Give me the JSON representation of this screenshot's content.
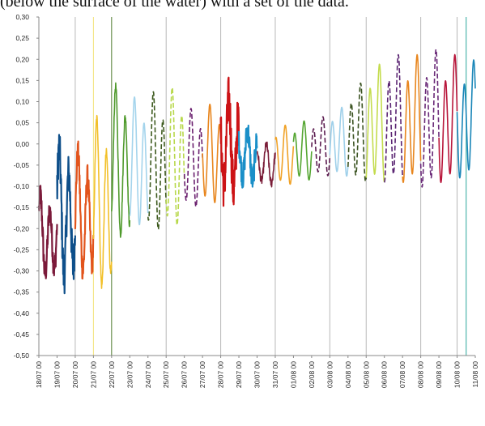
{
  "header_fragment": "(below the surface of the water) with a set of the data.",
  "chart_data": {
    "type": "line",
    "title": "",
    "xlabel": "",
    "ylabel": "",
    "ylim": [
      -0.5,
      0.3
    ],
    "y_ticks": [
      "0,30",
      "0,25",
      "0,20",
      "0,15",
      "0,10",
      "0,05",
      "0,00",
      "-0,05",
      "-0,10",
      "-0,15",
      "-0,20",
      "-0,25",
      "-0,30",
      "-0,35",
      "-0,40",
      "-0,45",
      "-0,50"
    ],
    "x_ticks": [
      "18/07 00",
      "19/07 00",
      "20/07 00",
      "21/07 00",
      "22/07 00",
      "23/07 00",
      "24/07 00",
      "25/07 00",
      "26/07 00",
      "27/07 00",
      "28/07 00",
      "29/07 00",
      "30/07 00",
      "31/07 00",
      "01/08 00",
      "02/08 00",
      "03/08 00",
      "04/08 00",
      "05/08 00",
      "06/08 00",
      "07/08 00",
      "08/08 00",
      "09/08 00",
      "10/08 00",
      "11/08 00"
    ],
    "grid": false,
    "legend": "none",
    "series_days": [
      {
        "day": "18/07",
        "color": "#7b1a3a",
        "style": "solid",
        "mean": -0.22,
        "amp": 0.08,
        "noise": 0.03
      },
      {
        "day": "19/07",
        "color": "#0e4f8a",
        "style": "solid",
        "mean": -0.17,
        "amp": 0.13,
        "noise": 0.05
      },
      {
        "day": "20/07",
        "color": "#e2541c",
        "style": "solid",
        "mean": -0.17,
        "amp": 0.12,
        "noise": 0.03
      },
      {
        "day": "21/07",
        "color": "#f2c029",
        "style": "solid",
        "mean": -0.15,
        "amp": 0.17,
        "noise": 0.01
      },
      {
        "day": "22/07",
        "color": "#4f9a2c",
        "style": "solid",
        "mean": -0.05,
        "amp": 0.15,
        "noise": 0.01
      },
      {
        "day": "23/07",
        "color": "#a4d4ec",
        "style": "solid",
        "mean": -0.05,
        "amp": 0.13,
        "noise": 0.0
      },
      {
        "day": "24/07",
        "color": "#3d5a1e",
        "style": "dashed",
        "mean": -0.05,
        "amp": 0.14,
        "noise": 0.0
      },
      {
        "day": "25/07",
        "color": "#b8d84b",
        "style": "dashed",
        "mean": -0.04,
        "amp": 0.14,
        "noise": 0.0
      },
      {
        "day": "26/07",
        "color": "#6a1f6e",
        "style": "dashed",
        "mean": -0.04,
        "amp": 0.1,
        "noise": 0.0
      },
      {
        "day": "27/07",
        "color": "#e8861e",
        "style": "solid",
        "mean": -0.03,
        "amp": 0.1,
        "noise": 0.0
      },
      {
        "day": "28/07",
        "color": "#cc1316",
        "style": "solid",
        "mean": -0.01,
        "amp": 0.09,
        "noise": 0.06
      },
      {
        "day": "29/07",
        "color": "#1a8fc8",
        "style": "solid",
        "mean": -0.03,
        "amp": 0.05,
        "noise": 0.03
      },
      {
        "day": "30/07",
        "color": "#7a1d38",
        "style": "solid",
        "mean": -0.05,
        "amp": 0.04,
        "noise": 0.01
      },
      {
        "day": "31/07",
        "color": "#f0a227",
        "style": "solid",
        "mean": -0.03,
        "amp": 0.06,
        "noise": 0.0
      },
      {
        "day": "01/08",
        "color": "#55a632",
        "style": "solid",
        "mean": -0.02,
        "amp": 0.06,
        "noise": 0.0
      },
      {
        "day": "02/08",
        "color": "#5a1a4e",
        "style": "dashed",
        "mean": -0.01,
        "amp": 0.06,
        "noise": 0.0
      },
      {
        "day": "03/08",
        "color": "#9fd0ea",
        "style": "solid",
        "mean": 0.0,
        "amp": 0.07,
        "noise": 0.0
      },
      {
        "day": "04/08",
        "color": "#3a5220",
        "style": "dashed",
        "mean": 0.02,
        "amp": 0.1,
        "noise": 0.0
      },
      {
        "day": "05/08",
        "color": "#c4dc4e",
        "style": "solid",
        "mean": 0.04,
        "amp": 0.12,
        "noise": 0.0
      },
      {
        "day": "06/08",
        "color": "#5a2472",
        "style": "dashed",
        "mean": 0.05,
        "amp": 0.13,
        "noise": 0.0
      },
      {
        "day": "07/08",
        "color": "#e8861e",
        "style": "solid",
        "mean": 0.05,
        "amp": 0.13,
        "noise": 0.0
      },
      {
        "day": "08/08",
        "color": "#6a2a78",
        "style": "dashed",
        "mean": 0.05,
        "amp": 0.14,
        "noise": 0.0
      },
      {
        "day": "09/08",
        "color": "#b8153a",
        "style": "solid",
        "mean": 0.05,
        "amp": 0.13,
        "noise": 0.0
      },
      {
        "day": "10/08",
        "color": "#1a86b8",
        "style": "solid",
        "mean": 0.05,
        "amp": 0.12,
        "noise": 0.0
      }
    ],
    "vertical_markers": [
      {
        "at": "18/07 00",
        "color": "#7b1a3a"
      },
      {
        "at": "20/07 00",
        "color": "#b8b8b8"
      },
      {
        "at": "21/07 00",
        "color": "#f2e27a"
      },
      {
        "at": "22/07 00",
        "color": "#4f7a2c"
      },
      {
        "at": "25/07 00",
        "color": "#b8b8b8"
      },
      {
        "at": "28/07 00",
        "color": "#b8b8b8"
      },
      {
        "at": "31/07 00",
        "color": "#b8b8b8"
      },
      {
        "at": "03/08 00",
        "color": "#b8b8b8"
      },
      {
        "at": "05/08 00",
        "color": "#b8b8b8"
      },
      {
        "at": "08/08 00",
        "color": "#b8b8b8"
      },
      {
        "at": "10/08 00",
        "color": "#b8b8b8"
      },
      {
        "at": "10/08 12",
        "color": "#2aa79b"
      }
    ]
  }
}
